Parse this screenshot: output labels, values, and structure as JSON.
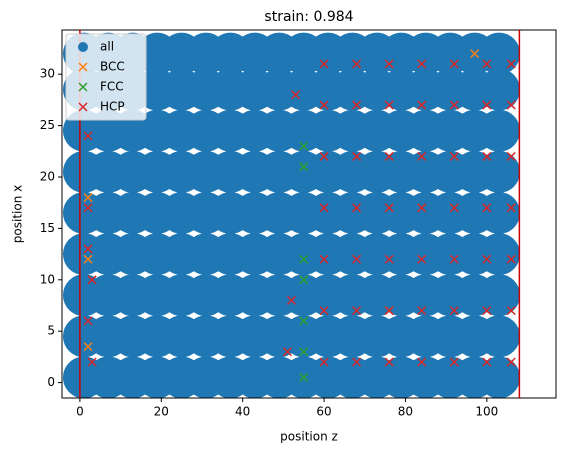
{
  "chart_data": {
    "type": "scatter",
    "title": "strain: 0.984",
    "x_label": "position z",
    "y_label": "position x",
    "xlim": [
      -4.4,
      117
    ],
    "ylim": [
      -1.5,
      34.3
    ],
    "xticks": [
      0,
      20,
      40,
      60,
      80,
      100
    ],
    "yticks": [
      0,
      5,
      10,
      15,
      20,
      25,
      30
    ],
    "vlines": [
      0,
      108
    ],
    "vline_color": "#cc0000",
    "legend": "upper left",
    "series": [
      {
        "name": "all",
        "color": "#1f77b4",
        "marker": "o",
        "x": [
          1,
          7,
          13,
          19,
          25,
          31,
          37,
          43,
          49,
          55,
          61,
          67,
          73,
          79,
          85,
          91,
          97,
          103,
          1,
          7,
          13,
          19,
          25,
          31,
          37,
          43,
          49,
          55,
          61,
          67,
          73,
          79,
          85,
          91,
          97,
          103,
          1,
          7,
          13,
          19,
          25,
          31,
          37,
          43,
          49,
          55,
          61,
          67,
          73,
          79,
          85,
          91,
          97,
          103,
          1,
          7,
          13,
          19,
          25,
          31,
          37,
          43,
          49,
          55,
          61,
          67,
          73,
          79,
          85,
          91,
          97,
          103,
          1,
          7,
          13,
          19,
          25,
          31,
          37,
          43,
          49,
          55,
          61,
          67,
          73,
          79,
          85,
          91,
          97,
          103,
          1,
          7,
          13,
          19,
          25,
          31,
          37,
          43,
          49,
          55,
          61,
          67,
          73,
          79,
          85,
          91,
          97,
          103,
          1,
          7,
          13,
          19,
          25,
          31,
          37,
          43,
          49,
          55,
          61,
          67,
          73,
          79,
          85,
          91,
          97,
          103,
          1,
          7,
          13,
          19,
          25,
          31,
          37,
          43,
          49,
          55,
          61,
          67,
          73,
          79,
          85,
          91,
          97,
          103,
          1,
          7,
          13,
          19,
          25,
          31,
          37,
          43,
          49,
          55,
          61,
          67,
          73,
          79,
          85,
          91,
          97,
          103
        ],
        "y": [
          0.5,
          0.5,
          0.5,
          0.5,
          0.5,
          0.5,
          0.5,
          0.5,
          0.5,
          0.5,
          0.5,
          0.5,
          0.5,
          0.5,
          0.5,
          0.5,
          0.5,
          0.5,
          4.5,
          4.5,
          4.5,
          4.5,
          4.5,
          4.5,
          4.5,
          4.5,
          4.5,
          4.5,
          4.5,
          4.5,
          4.5,
          4.5,
          4.5,
          4.5,
          4.5,
          4.5,
          8.5,
          8.5,
          8.5,
          8.5,
          8.5,
          8.5,
          8.5,
          8.5,
          8.5,
          8.5,
          8.5,
          8.5,
          8.5,
          8.5,
          8.5,
          8.5,
          8.5,
          8.5,
          12.5,
          12.5,
          12.5,
          12.5,
          12.5,
          12.5,
          12.5,
          12.5,
          12.5,
          12.5,
          12.5,
          12.5,
          12.5,
          12.5,
          12.5,
          12.5,
          12.5,
          12.5,
          16.5,
          16.5,
          16.5,
          16.5,
          16.5,
          16.5,
          16.5,
          16.5,
          16.5,
          16.5,
          16.5,
          16.5,
          16.5,
          16.5,
          16.5,
          16.5,
          16.5,
          16.5,
          20.5,
          20.5,
          20.5,
          20.5,
          20.5,
          20.5,
          20.5,
          20.5,
          20.5,
          20.5,
          20.5,
          20.5,
          20.5,
          20.5,
          20.5,
          20.5,
          20.5,
          20.5,
          24.5,
          24.5,
          24.5,
          24.5,
          24.5,
          24.5,
          24.5,
          24.5,
          24.5,
          24.5,
          24.5,
          24.5,
          24.5,
          24.5,
          24.5,
          24.5,
          24.5,
          24.5,
          28.5,
          28.5,
          28.5,
          28.5,
          28.5,
          28.5,
          28.5,
          28.5,
          28.5,
          28.5,
          28.5,
          28.5,
          28.5,
          28.5,
          28.5,
          28.5,
          28.5,
          28.5,
          32,
          32,
          32,
          32,
          32,
          32,
          32,
          32,
          32,
          32,
          32,
          32,
          32,
          32,
          32,
          32,
          32,
          32
        ]
      },
      {
        "name": "BCC",
        "color": "#ff7f0e",
        "marker": "x",
        "x": [
          2,
          2,
          2,
          76,
          97
        ],
        "y": [
          18,
          12,
          3.5,
          7,
          32
        ]
      },
      {
        "name": "FCC",
        "color": "#2ca02c",
        "marker": "x",
        "x": [
          55,
          55,
          55,
          55,
          55,
          55,
          55
        ],
        "y": [
          23,
          21,
          12,
          10,
          6,
          3,
          0.5
        ]
      },
      {
        "name": "HCP",
        "color": "#d62728",
        "marker": "x",
        "x": [
          60,
          68,
          76,
          84,
          92,
          100,
          106,
          60,
          68,
          76,
          84,
          92,
          100,
          106,
          60,
          68,
          76,
          84,
          92,
          100,
          106,
          60,
          68,
          76,
          84,
          92,
          100,
          106,
          60,
          68,
          76,
          84,
          92,
          100,
          106,
          60,
          68,
          76,
          84,
          92,
          100,
          106,
          60,
          68,
          76,
          84,
          92,
          100,
          106,
          2,
          2,
          3,
          2,
          3,
          2,
          52,
          51,
          53
        ],
        "y": [
          2,
          2,
          2,
          2,
          2,
          2,
          2,
          7,
          7,
          7,
          7,
          7,
          7,
          7,
          12,
          12,
          12,
          12,
          12,
          12,
          12,
          17,
          17,
          17,
          17,
          17,
          17,
          17,
          22,
          22,
          22,
          22,
          22,
          22,
          22,
          27,
          27,
          27,
          27,
          27,
          27,
          27,
          31,
          31,
          31,
          31,
          31,
          31,
          31,
          24,
          17,
          10,
          6,
          2,
          13,
          8,
          3,
          28
        ]
      }
    ]
  }
}
